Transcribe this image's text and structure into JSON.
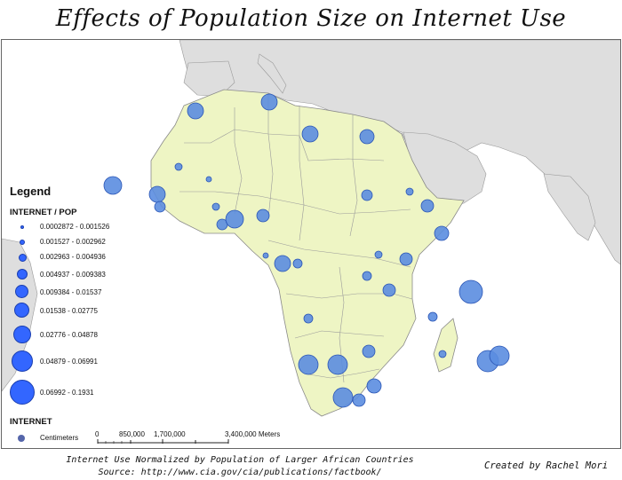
{
  "title": "Effects of Population Size on Internet Use",
  "legend": {
    "heading": "Legend",
    "field": "INTERNET / POP",
    "classes": [
      {
        "label": "0.0002872 - 0.001526"
      },
      {
        "label": "0.001527 - 0.002962"
      },
      {
        "label": "0.002963 - 0.004936"
      },
      {
        "label": "0.004937 - 0.009383"
      },
      {
        "label": "0.009384 - 0.01537"
      },
      {
        "label": "0.01538 - 0.02775"
      },
      {
        "label": "0.02776 - 0.04878"
      },
      {
        "label": "0.04879 - 0.06991"
      },
      {
        "label": "0.06992 - 0.1931"
      }
    ],
    "layer2_field": "INTERNET",
    "layer2_unit": "Centimeters"
  },
  "scalebar": {
    "labels": [
      "0",
      "850,000",
      "1,700,000",
      "3,400,000 Meters"
    ]
  },
  "footer": {
    "line1": "Internet Use Normalized by Population of Larger African Countries",
    "line2": "Source: http://www.cia.gov/cia/publications/factbook/"
  },
  "credit": "Created by Rachel Mori",
  "colors": {
    "africa_fill": "#eef5c4",
    "other_land": "#dedede",
    "symbol_fill": "#5b8de0",
    "symbol_stroke": "#2a55b5",
    "legend_symbol": "#3366ff"
  }
}
